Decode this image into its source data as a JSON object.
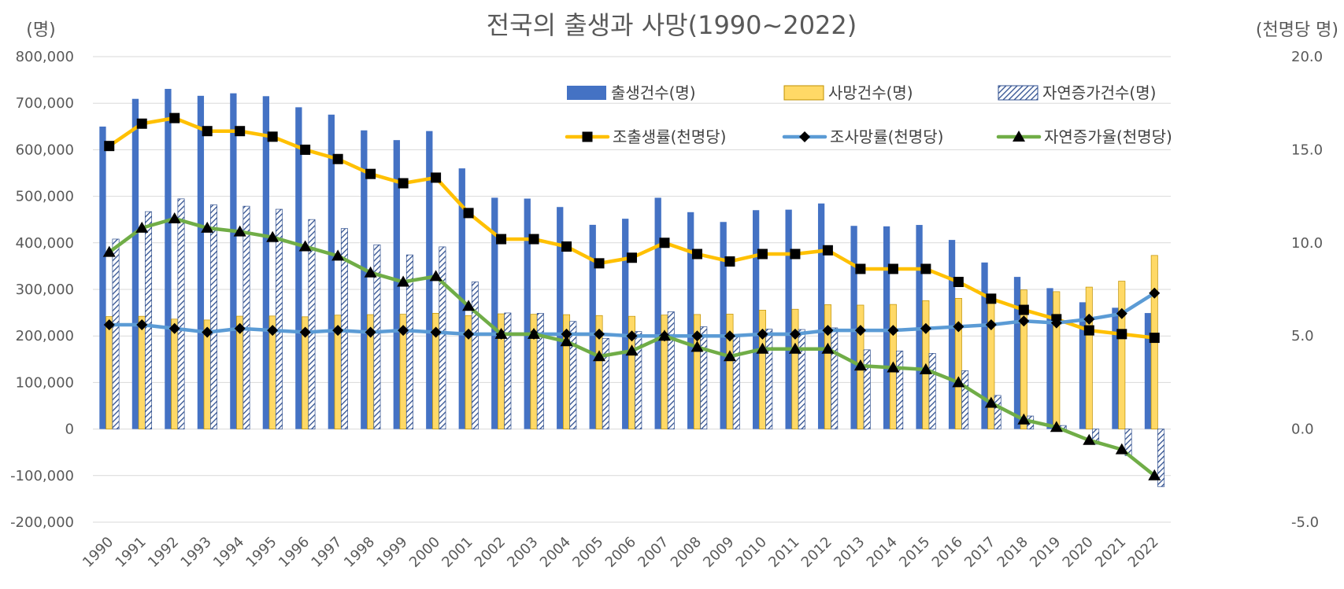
{
  "chart_data": {
    "type": "bar",
    "title": "전국의 출생과 사망(1990~2022)",
    "left_axis_unit": "(명)",
    "right_axis_unit": "(천명당 명)",
    "categories": [
      "1990",
      "1991",
      "1992",
      "1993",
      "1994",
      "1995",
      "1996",
      "1997",
      "1998",
      "1999",
      "2000",
      "2001",
      "2002",
      "2003",
      "2004",
      "2005",
      "2006",
      "2007",
      "2008",
      "2009",
      "2010",
      "2011",
      "2012",
      "2013",
      "2014",
      "2015",
      "2016",
      "2017",
      "2018",
      "2019",
      "2020",
      "2021",
      "2022"
    ],
    "left_ylim": [
      -200000,
      800000
    ],
    "left_ticks": [
      -200000,
      -100000,
      0,
      100000,
      200000,
      300000,
      400000,
      500000,
      600000,
      700000,
      800000
    ],
    "left_tick_labels": [
      "-200,000",
      "-100,000",
      "0",
      "100,000",
      "200,000",
      "300,000",
      "400,000",
      "500,000",
      "600,000",
      "700,000",
      "800,000"
    ],
    "right_ylim": [
      -5,
      20
    ],
    "right_ticks": [
      -5,
      0,
      5,
      10,
      15,
      20
    ],
    "right_tick_labels": [
      "-5.0",
      "0.0",
      "5.0",
      "10.0",
      "15.0",
      "20.0"
    ],
    "grid": true,
    "legend_position": "top-right",
    "bar_series": [
      {
        "name": "출생건수(명)",
        "color": "#4472c4",
        "style": "solid",
        "values": [
          649738,
          709275,
          730678,
          715826,
          721185,
          715020,
          691226,
          675394,
          641594,
          620668,
          640089,
          559934,
          496911,
          495036,
          476958,
          438707,
          451759,
          496822,
          465892,
          444849,
          470171,
          471265,
          484550,
          436455,
          435435,
          438420,
          406243,
          357771,
          326822,
          302676,
          272337,
          260562,
          249186
        ]
      },
      {
        "name": "사망건수(명)",
        "color": "#ffd966",
        "style": "solid",
        "values": [
          241616,
          242270,
          236162,
          234257,
          242439,
          242838,
          241149,
          244693,
          245825,
          246539,
          248740,
          243813,
          247524,
          246463,
          245771,
          243883,
          242266,
          244874,
          246113,
          246942,
          255405,
          257396,
          267221,
          266257,
          267692,
          275895,
          280827,
          285534,
          298820,
          295110,
          304948,
          317680,
          372939
        ]
      },
      {
        "name": "자연증가건수(명)",
        "color": "#2f4f8f",
        "style": "hatch",
        "values": [
          408122,
          467005,
          494516,
          481569,
          478746,
          472182,
          450077,
          430701,
          395769,
          374129,
          391349,
          316121,
          249387,
          248573,
          231187,
          194824,
          209493,
          251948,
          219779,
          197907,
          214766,
          213869,
          217329,
          170198,
          167743,
          162525,
          125416,
          72237,
          28002,
          7566,
          -32611,
          -57118,
          -123753
        ]
      }
    ],
    "line_series": [
      {
        "name": "조출생률(천명당)",
        "color": "#ffc000",
        "marker": "square",
        "values": [
          15.2,
          16.4,
          16.7,
          16.0,
          16.0,
          15.7,
          15.0,
          14.5,
          13.7,
          13.2,
          13.5,
          11.6,
          10.2,
          10.2,
          9.8,
          8.9,
          9.2,
          10.0,
          9.4,
          9.0,
          9.4,
          9.4,
          9.6,
          8.6,
          8.6,
          8.6,
          7.9,
          7.0,
          6.4,
          5.9,
          5.3,
          5.1,
          4.9
        ]
      },
      {
        "name": "조사망률(천명당)",
        "color": "#5b9bd5",
        "marker": "diamond",
        "values": [
          5.6,
          5.6,
          5.4,
          5.2,
          5.4,
          5.3,
          5.2,
          5.3,
          5.2,
          5.3,
          5.2,
          5.1,
          5.1,
          5.1,
          5.1,
          5.1,
          5.0,
          5.0,
          5.0,
          5.0,
          5.1,
          5.1,
          5.3,
          5.3,
          5.3,
          5.4,
          5.5,
          5.6,
          5.8,
          5.7,
          5.9,
          6.2,
          7.3
        ]
      },
      {
        "name": "자연증가율(천명당)",
        "color": "#70ad47",
        "marker": "triangle",
        "values": [
          9.5,
          10.8,
          11.3,
          10.8,
          10.6,
          10.3,
          9.8,
          9.3,
          8.4,
          7.9,
          8.2,
          6.6,
          5.1,
          5.1,
          4.7,
          3.9,
          4.2,
          5.0,
          4.4,
          3.9,
          4.3,
          4.3,
          4.3,
          3.4,
          3.3,
          3.2,
          2.5,
          1.4,
          0.5,
          0.1,
          -0.6,
          -1.1,
          -2.5
        ]
      }
    ]
  }
}
